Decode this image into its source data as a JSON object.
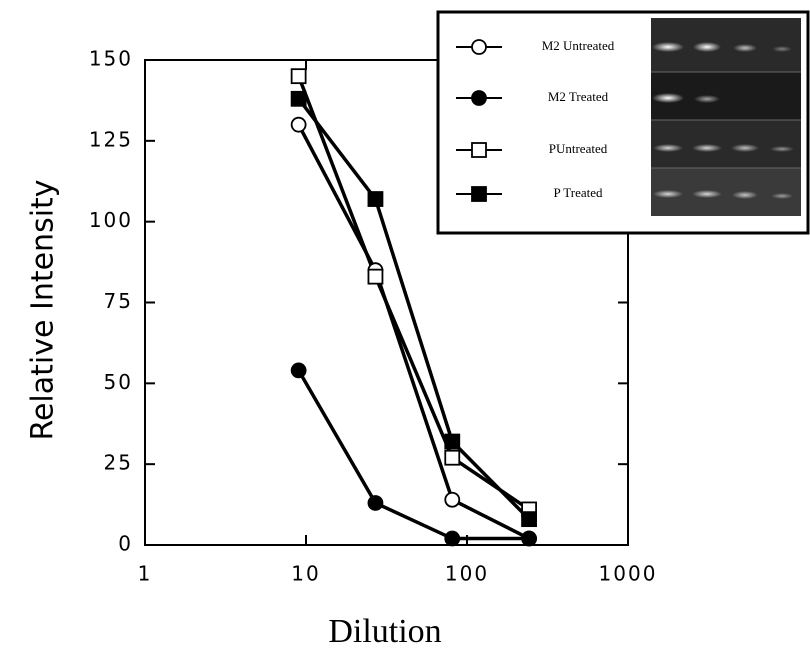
{
  "chart_data": {
    "type": "line",
    "x_label": "Dilution",
    "y_label": "Relative Intensity",
    "x_log": true,
    "xlim": [
      1,
      1000
    ],
    "xticks": [
      1,
      10,
      100,
      1000
    ],
    "ylim": [
      0,
      150
    ],
    "yticks": [
      0,
      25,
      50,
      75,
      100,
      125,
      150
    ],
    "x": [
      9,
      27,
      81,
      243
    ],
    "series": [
      {
        "name": "M2 Untreated",
        "color": "#000000",
        "marker": "circle",
        "filled": false,
        "values": [
          130,
          85,
          14,
          2
        ]
      },
      {
        "name": "M2  Treated",
        "color": "#000000",
        "marker": "circle",
        "filled": true,
        "values": [
          54,
          13,
          2,
          2
        ]
      },
      {
        "name": "PUntreated",
        "color": "#000000",
        "marker": "square",
        "filled": false,
        "values": [
          145,
          83,
          27,
          11
        ]
      },
      {
        "name": "P Treated",
        "color": "#000000",
        "marker": "square",
        "filled": true,
        "values": [
          138,
          107,
          32,
          8
        ]
      }
    ]
  }
}
